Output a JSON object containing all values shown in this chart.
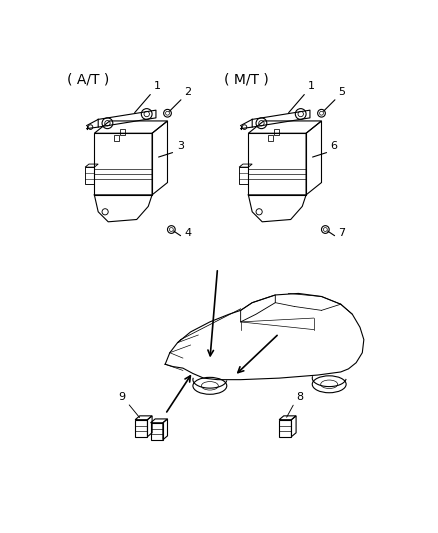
{
  "background_color": "#ffffff",
  "line_color": "#000000",
  "text_color": "#000000",
  "labels": {
    "AT": "( A/T )",
    "MT": "( M/T )"
  },
  "figsize": [
    4.38,
    5.33
  ],
  "dpi": 100
}
